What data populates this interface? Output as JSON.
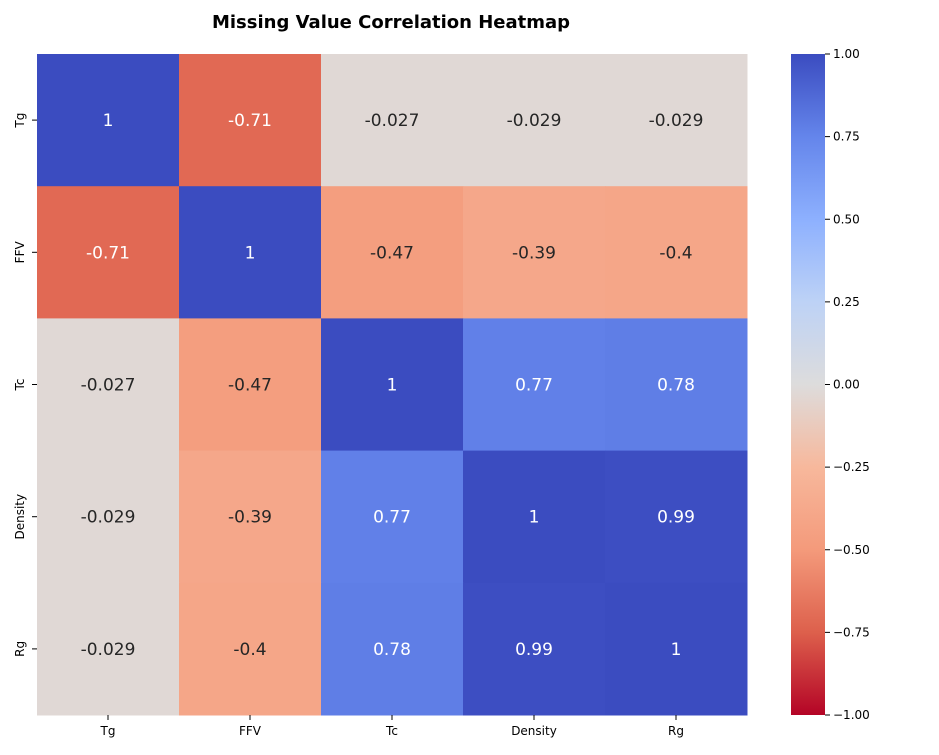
{
  "chart_data": {
    "type": "heatmap",
    "title": "Missing Value Correlation Heatmap",
    "x_categories": [
      "Tg",
      "FFV",
      "Tc",
      "Density",
      "Rg"
    ],
    "y_categories": [
      "Tg",
      "FFV",
      "Tc",
      "Density",
      "Rg"
    ],
    "values": [
      [
        1,
        -0.71,
        -0.027,
        -0.029,
        -0.029
      ],
      [
        -0.71,
        1,
        -0.47,
        -0.39,
        -0.4
      ],
      [
        -0.027,
        -0.47,
        1,
        0.77,
        0.78
      ],
      [
        -0.029,
        -0.39,
        0.77,
        1,
        0.99
      ],
      [
        -0.029,
        -0.4,
        0.78,
        0.99,
        1
      ]
    ],
    "colormap": "coolwarm_r",
    "vmin": -1.0,
    "vmax": 1.0,
    "colorbar_ticks": [
      "1.00",
      "0.75",
      "0.50",
      "0.25",
      "0.00",
      "−0.25",
      "−0.50",
      "−0.75",
      "−1.00"
    ],
    "colorbar_tick_values": [
      1.0,
      0.75,
      0.5,
      0.25,
      0.0,
      -0.25,
      -0.5,
      -0.75,
      -1.0
    ],
    "annotations": true,
    "grid": false
  }
}
